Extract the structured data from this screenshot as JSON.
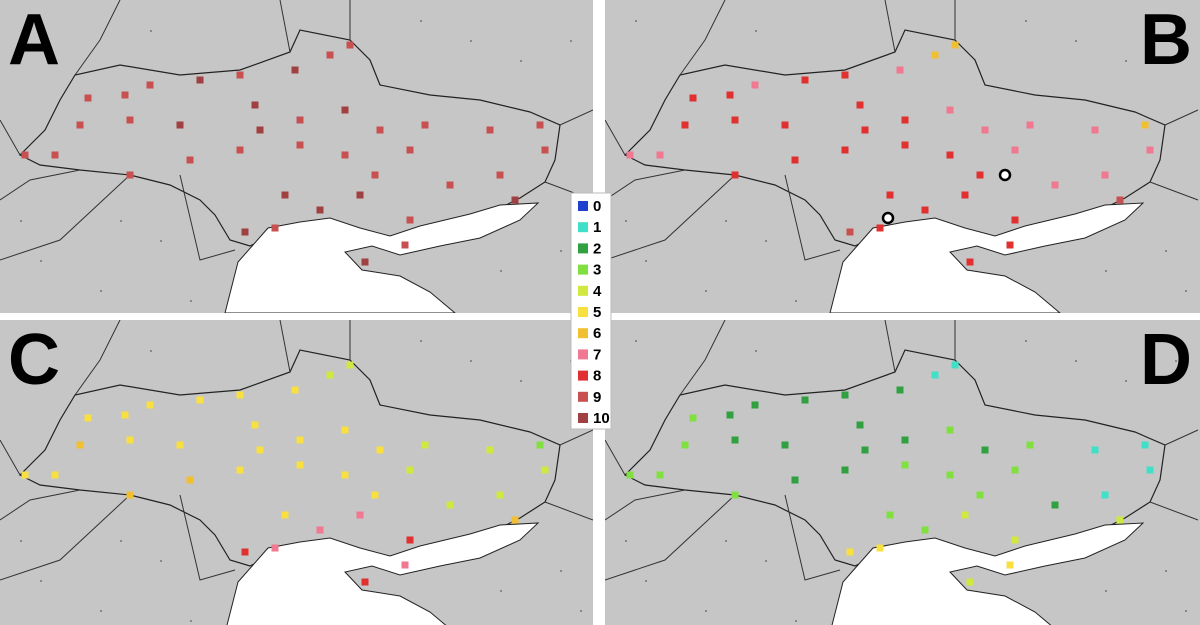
{
  "legend": {
    "items": [
      {
        "label": "0",
        "color": "#2040d0"
      },
      {
        "label": "1",
        "color": "#40e0c8"
      },
      {
        "label": "2",
        "color": "#30a040"
      },
      {
        "label": "3",
        "color": "#80e040"
      },
      {
        "label": "4",
        "color": "#d0e840"
      },
      {
        "label": "5",
        "color": "#f8e040"
      },
      {
        "label": "6",
        "color": "#f0c030"
      },
      {
        "label": "7",
        "color": "#f07890"
      },
      {
        "label": "8",
        "color": "#e03030"
      },
      {
        "label": "9",
        "color": "#c85050"
      },
      {
        "label": "10",
        "color": "#a04040"
      }
    ]
  },
  "panels": [
    {
      "label": "A",
      "values": [
        9,
        9,
        9,
        10,
        9,
        10,
        9,
        9,
        9,
        9,
        10,
        10,
        9,
        10,
        9,
        9,
        9,
        9,
        9,
        9,
        9,
        9,
        9,
        10,
        9,
        9,
        9,
        9,
        9,
        9,
        9,
        10,
        10,
        10,
        9,
        9,
        10,
        9,
        10,
        10
      ]
    },
    {
      "label": "B",
      "values": [
        8,
        8,
        7,
        8,
        8,
        7,
        6,
        6,
        8,
        8,
        8,
        8,
        8,
        7,
        7,
        7,
        7,
        6,
        7,
        7,
        8,
        8,
        8,
        8,
        8,
        8,
        8,
        7,
        7,
        7,
        7,
        8,
        8,
        8,
        8,
        8,
        9,
        8,
        8,
        9
      ]
    },
    {
      "label": "C",
      "values": [
        5,
        5,
        5,
        5,
        5,
        5,
        4,
        4,
        6,
        5,
        5,
        5,
        5,
        5,
        5,
        4,
        4,
        3,
        5,
        5,
        6,
        6,
        5,
        5,
        5,
        5,
        5,
        4,
        4,
        4,
        4,
        5,
        7,
        7,
        8,
        7,
        8,
        7,
        8,
        6
      ]
    },
    {
      "label": "D",
      "values": [
        3,
        2,
        2,
        2,
        2,
        2,
        1,
        1,
        3,
        2,
        2,
        2,
        2,
        3,
        2,
        3,
        1,
        1,
        3,
        3,
        3,
        2,
        2,
        2,
        3,
        3,
        3,
        3,
        2,
        1,
        1,
        3,
        3,
        4,
        4,
        5,
        5,
        5,
        4,
        4
      ]
    }
  ]
}
